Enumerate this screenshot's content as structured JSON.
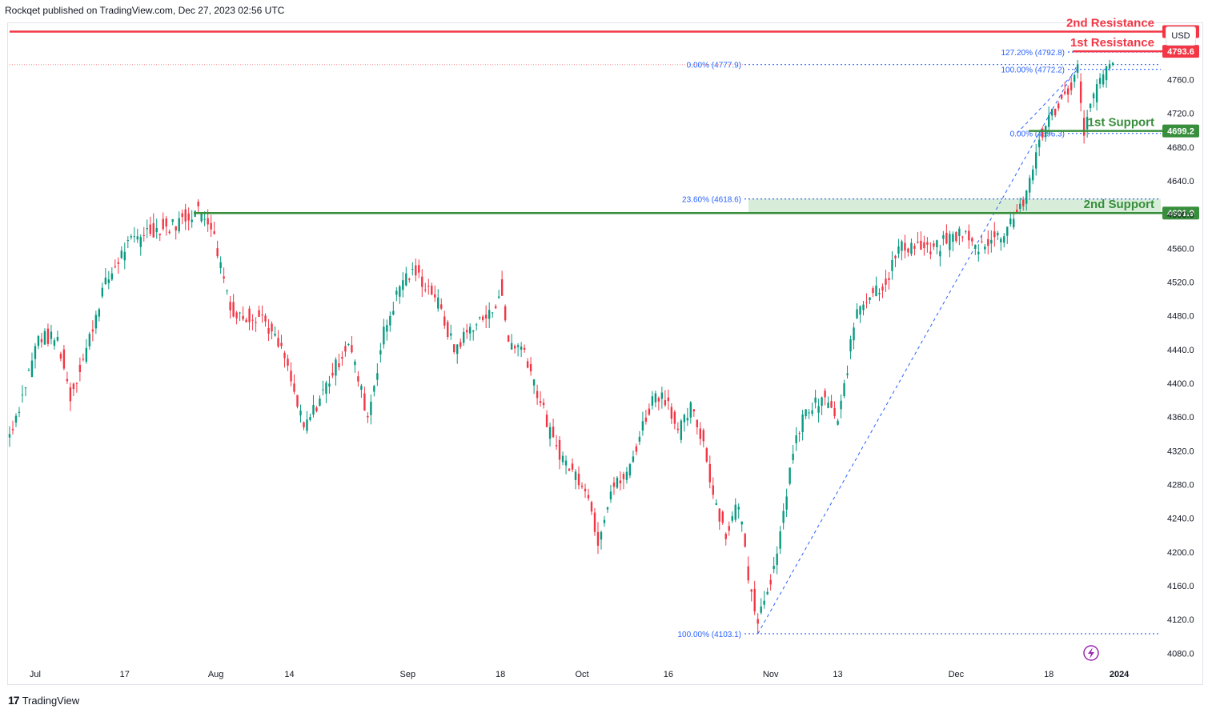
{
  "header": {
    "published": "Rockqet published on TradingView.com, Dec 27, 2023 02:56 UTC"
  },
  "currency": "USD",
  "footer": {
    "brand": "TradingView",
    "logo": "tradingview-logo-icon"
  },
  "colors": {
    "up": "#089981",
    "down": "#f23645",
    "resistance": "#f23645",
    "support": "#388e3c",
    "fib": "#2962ff",
    "fib_text": "#2962ff",
    "zone": "#c8e6c9",
    "grid": "#f0f3fa",
    "axis_text": "#131722"
  },
  "chart_data": {
    "type": "candlestick",
    "title": "",
    "ylabel": "",
    "ylim": [
      4060,
      4840
    ],
    "yticks": [
      4080,
      4120,
      4160,
      4200,
      4240,
      4280,
      4320,
      4360,
      4400,
      4440,
      4480,
      4520,
      4560,
      4600,
      4640,
      4680,
      4720,
      4760
    ],
    "yticklabels": [
      "4080.0",
      "4120.0",
      "4160.0",
      "4200.0",
      "4240.0",
      "4280.0",
      "4320.0",
      "4360.0",
      "4400.0",
      "4440.0",
      "4480.0",
      "4520.0",
      "4560.0",
      "4600.0",
      "4640.0",
      "4680.0",
      "4720.0",
      "4760.0"
    ],
    "xticks": [
      {
        "label": "Jul",
        "bar": 16
      },
      {
        "label": "17",
        "bar": 72
      },
      {
        "label": "Aug",
        "bar": 129
      },
      {
        "label": "14",
        "bar": 175
      },
      {
        "label": "Sep",
        "bar": 249
      },
      {
        "label": "18",
        "bar": 307
      },
      {
        "label": "Oct",
        "bar": 358
      },
      {
        "label": "16",
        "bar": 412
      },
      {
        "label": "Nov",
        "bar": 476
      },
      {
        "label": "13",
        "bar": 518
      },
      {
        "label": "Dec",
        "bar": 592
      },
      {
        "label": "18",
        "bar": 650
      },
      {
        "label": "2024",
        "bar": 694
      }
    ],
    "bar_count": 720,
    "anchors": [
      [
        0,
        4340
      ],
      [
        8,
        4385
      ],
      [
        18,
        4455
      ],
      [
        30,
        4452
      ],
      [
        38,
        4385
      ],
      [
        48,
        4440
      ],
      [
        58,
        4510
      ],
      [
        72,
        4560
      ],
      [
        84,
        4580
      ],
      [
        100,
        4585
      ],
      [
        117,
        4605
      ],
      [
        125,
        4595
      ],
      [
        140,
        4480
      ],
      [
        158,
        4480
      ],
      [
        172,
        4430
      ],
      [
        184,
        4345
      ],
      [
        196,
        4390
      ],
      [
        212,
        4450
      ],
      [
        224,
        4360
      ],
      [
        234,
        4460
      ],
      [
        246,
        4525
      ],
      [
        254,
        4530
      ],
      [
        266,
        4505
      ],
      [
        278,
        4440
      ],
      [
        290,
        4470
      ],
      [
        300,
        4480
      ],
      [
        307,
        4510
      ],
      [
        312,
        4450
      ],
      [
        322,
        4440
      ],
      [
        330,
        4390
      ],
      [
        340,
        4330
      ],
      [
        350,
        4300
      ],
      [
        360,
        4280
      ],
      [
        368,
        4215
      ],
      [
        376,
        4275
      ],
      [
        386,
        4290
      ],
      [
        396,
        4350
      ],
      [
        404,
        4390
      ],
      [
        412,
        4380
      ],
      [
        418,
        4340
      ],
      [
        426,
        4370
      ],
      [
        434,
        4330
      ],
      [
        440,
        4270
      ],
      [
        448,
        4220
      ],
      [
        456,
        4260
      ],
      [
        462,
        4175
      ],
      [
        468,
        4120
      ],
      [
        474,
        4160
      ],
      [
        480,
        4190
      ],
      [
        488,
        4300
      ],
      [
        496,
        4360
      ],
      [
        504,
        4375
      ],
      [
        512,
        4380
      ],
      [
        518,
        4350
      ],
      [
        524,
        4420
      ],
      [
        530,
        4490
      ],
      [
        540,
        4510
      ],
      [
        548,
        4520
      ],
      [
        556,
        4560
      ],
      [
        566,
        4565
      ],
      [
        576,
        4555
      ],
      [
        586,
        4570
      ],
      [
        596,
        4580
      ],
      [
        604,
        4560
      ],
      [
        612,
        4570
      ],
      [
        620,
        4575
      ],
      [
        628,
        4600
      ],
      [
        636,
        4620
      ],
      [
        644,
        4690
      ],
      [
        652,
        4720
      ],
      [
        660,
        4740
      ],
      [
        668,
        4772
      ],
      [
        672,
        4700
      ],
      [
        678,
        4740
      ],
      [
        684,
        4765
      ],
      [
        690,
        4780
      ]
    ],
    "levels": [
      {
        "name": "2nd Resistance",
        "value": 4817.0,
        "label": "4817.0",
        "kind": "resistance"
      },
      {
        "name": "1st Resistance",
        "value": 4793.6,
        "label": "4793.6",
        "kind": "resistance"
      },
      {
        "name": "1st Support",
        "value": 4699.2,
        "label": "4699.2",
        "kind": "support"
      },
      {
        "name": "2nd Support",
        "value": 4601.9,
        "label": "4601.9",
        "kind": "support"
      }
    ],
    "fib_major": [
      {
        "label": "0.00% (4777.9)",
        "value": 4777.9
      },
      {
        "label": "23.60% (4618.6)",
        "value": 4618.6
      },
      {
        "label": "100.00% (4103.1)",
        "value": 4103.1
      }
    ],
    "fib_minor": [
      {
        "label": "127.20% (4792.8)",
        "value": 4792.8
      },
      {
        "label": "100.00% (4772.2)",
        "value": 4772.2
      },
      {
        "label": "0.00% (4696.3)",
        "value": 4696.3
      }
    ],
    "support_zone": [
      4601.9,
      4618.6
    ]
  }
}
